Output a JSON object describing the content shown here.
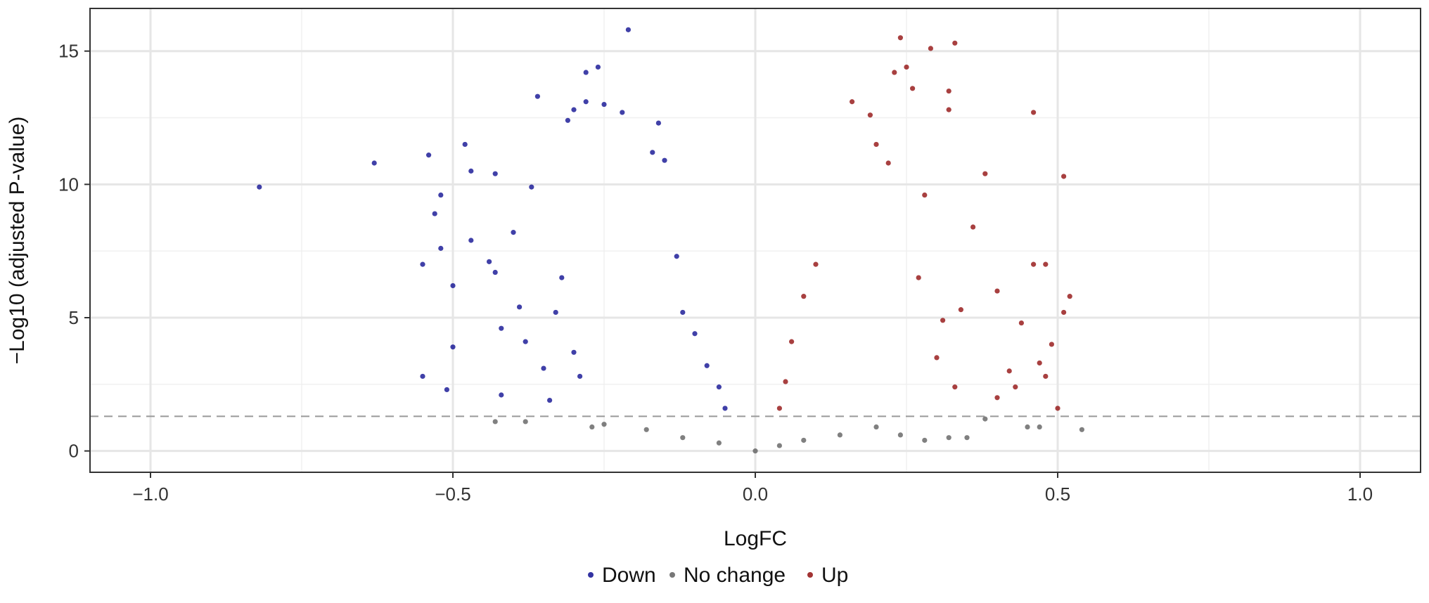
{
  "chart_data": {
    "type": "scatter",
    "xlabel": "LogFC",
    "ylabel": "−Log10 (adjusted P-value)",
    "xlim": [
      -1.1,
      1.1
    ],
    "ylim": [
      -0.8,
      16.6
    ],
    "x_ticks": [
      -1.0,
      -0.5,
      0.0,
      0.5,
      1.0
    ],
    "x_tick_labels": [
      "−1.0",
      "−0.5",
      "0.0",
      "0.5",
      "1.0"
    ],
    "y_ticks": [
      0,
      5,
      10,
      15
    ],
    "y_tick_labels": [
      "0",
      "5",
      "10",
      "15"
    ],
    "grid": true,
    "threshold_line": {
      "y": 1.3,
      "style": "dashed",
      "color": "#999999"
    },
    "legend_position": "bottom",
    "colors": {
      "Down": "#00008B",
      "No change": "#555555",
      "Up": "#8B0000"
    },
    "series": [
      {
        "name": "Down",
        "points": [
          [
            -0.82,
            9.9
          ],
          [
            -0.63,
            10.8
          ],
          [
            -0.54,
            11.1
          ],
          [
            -0.55,
            7.0
          ],
          [
            -0.52,
            9.6
          ],
          [
            -0.52,
            7.6
          ],
          [
            -0.53,
            8.9
          ],
          [
            -0.48,
            11.5
          ],
          [
            -0.47,
            10.5
          ],
          [
            -0.47,
            7.9
          ],
          [
            -0.5,
            6.2
          ],
          [
            -0.51,
            2.3
          ],
          [
            -0.55,
            2.8
          ],
          [
            -0.5,
            3.9
          ],
          [
            -0.44,
            7.1
          ],
          [
            -0.43,
            6.7
          ],
          [
            -0.42,
            4.6
          ],
          [
            -0.42,
            2.1
          ],
          [
            -0.43,
            10.4
          ],
          [
            -0.4,
            8.2
          ],
          [
            -0.39,
            5.4
          ],
          [
            -0.38,
            4.1
          ],
          [
            -0.37,
            9.9
          ],
          [
            -0.36,
            13.3
          ],
          [
            -0.35,
            3.1
          ],
          [
            -0.34,
            1.9
          ],
          [
            -0.31,
            12.4
          ],
          [
            -0.3,
            12.8
          ],
          [
            -0.28,
            13.1
          ],
          [
            -0.28,
            14.2
          ],
          [
            -0.26,
            14.4
          ],
          [
            -0.25,
            13.0
          ],
          [
            -0.21,
            15.8
          ],
          [
            -0.22,
            12.7
          ],
          [
            -0.16,
            12.3
          ],
          [
            -0.17,
            11.2
          ],
          [
            -0.15,
            10.9
          ],
          [
            -0.13,
            7.3
          ],
          [
            -0.12,
            5.2
          ],
          [
            -0.1,
            4.4
          ],
          [
            -0.08,
            3.2
          ],
          [
            -0.06,
            2.4
          ],
          [
            -0.05,
            1.6
          ],
          [
            -0.3,
            3.7
          ],
          [
            -0.33,
            5.2
          ],
          [
            -0.29,
            2.8
          ],
          [
            -0.32,
            6.5
          ]
        ]
      },
      {
        "name": "No change",
        "points": [
          [
            -0.43,
            1.1
          ],
          [
            -0.38,
            1.1
          ],
          [
            -0.27,
            0.9
          ],
          [
            -0.25,
            1.0
          ],
          [
            -0.18,
            0.8
          ],
          [
            -0.12,
            0.5
          ],
          [
            -0.06,
            0.3
          ],
          [
            0.0,
            0.0
          ],
          [
            0.04,
            0.2
          ],
          [
            0.08,
            0.4
          ],
          [
            0.14,
            0.6
          ],
          [
            0.2,
            0.9
          ],
          [
            0.24,
            0.6
          ],
          [
            0.28,
            0.4
          ],
          [
            0.32,
            0.5
          ],
          [
            0.35,
            0.5
          ],
          [
            0.38,
            1.2
          ],
          [
            0.45,
            0.9
          ],
          [
            0.47,
            0.9
          ],
          [
            0.54,
            0.8
          ]
        ]
      },
      {
        "name": "Up",
        "points": [
          [
            0.24,
            15.5
          ],
          [
            0.29,
            15.1
          ],
          [
            0.33,
            15.3
          ],
          [
            0.23,
            14.2
          ],
          [
            0.25,
            14.4
          ],
          [
            0.32,
            13.5
          ],
          [
            0.32,
            12.8
          ],
          [
            0.26,
            13.6
          ],
          [
            0.16,
            13.1
          ],
          [
            0.46,
            12.7
          ],
          [
            0.19,
            12.6
          ],
          [
            0.2,
            11.5
          ],
          [
            0.38,
            10.4
          ],
          [
            0.51,
            10.3
          ],
          [
            0.22,
            10.8
          ],
          [
            0.36,
            8.4
          ],
          [
            0.28,
            9.6
          ],
          [
            0.4,
            6.0
          ],
          [
            0.46,
            7.0
          ],
          [
            0.48,
            7.0
          ],
          [
            0.52,
            5.8
          ],
          [
            0.51,
            5.2
          ],
          [
            0.49,
            4.0
          ],
          [
            0.47,
            3.3
          ],
          [
            0.48,
            2.8
          ],
          [
            0.5,
            1.6
          ],
          [
            0.43,
            2.4
          ],
          [
            0.4,
            2.0
          ],
          [
            0.33,
            2.4
          ],
          [
            0.3,
            3.5
          ],
          [
            0.1,
            7.0
          ],
          [
            0.08,
            5.8
          ],
          [
            0.06,
            4.1
          ],
          [
            0.05,
            2.6
          ],
          [
            0.04,
            1.6
          ],
          [
            0.42,
            3.0
          ],
          [
            0.44,
            4.8
          ],
          [
            0.34,
            5.3
          ],
          [
            0.31,
            4.9
          ],
          [
            0.27,
            6.5
          ]
        ]
      }
    ]
  }
}
